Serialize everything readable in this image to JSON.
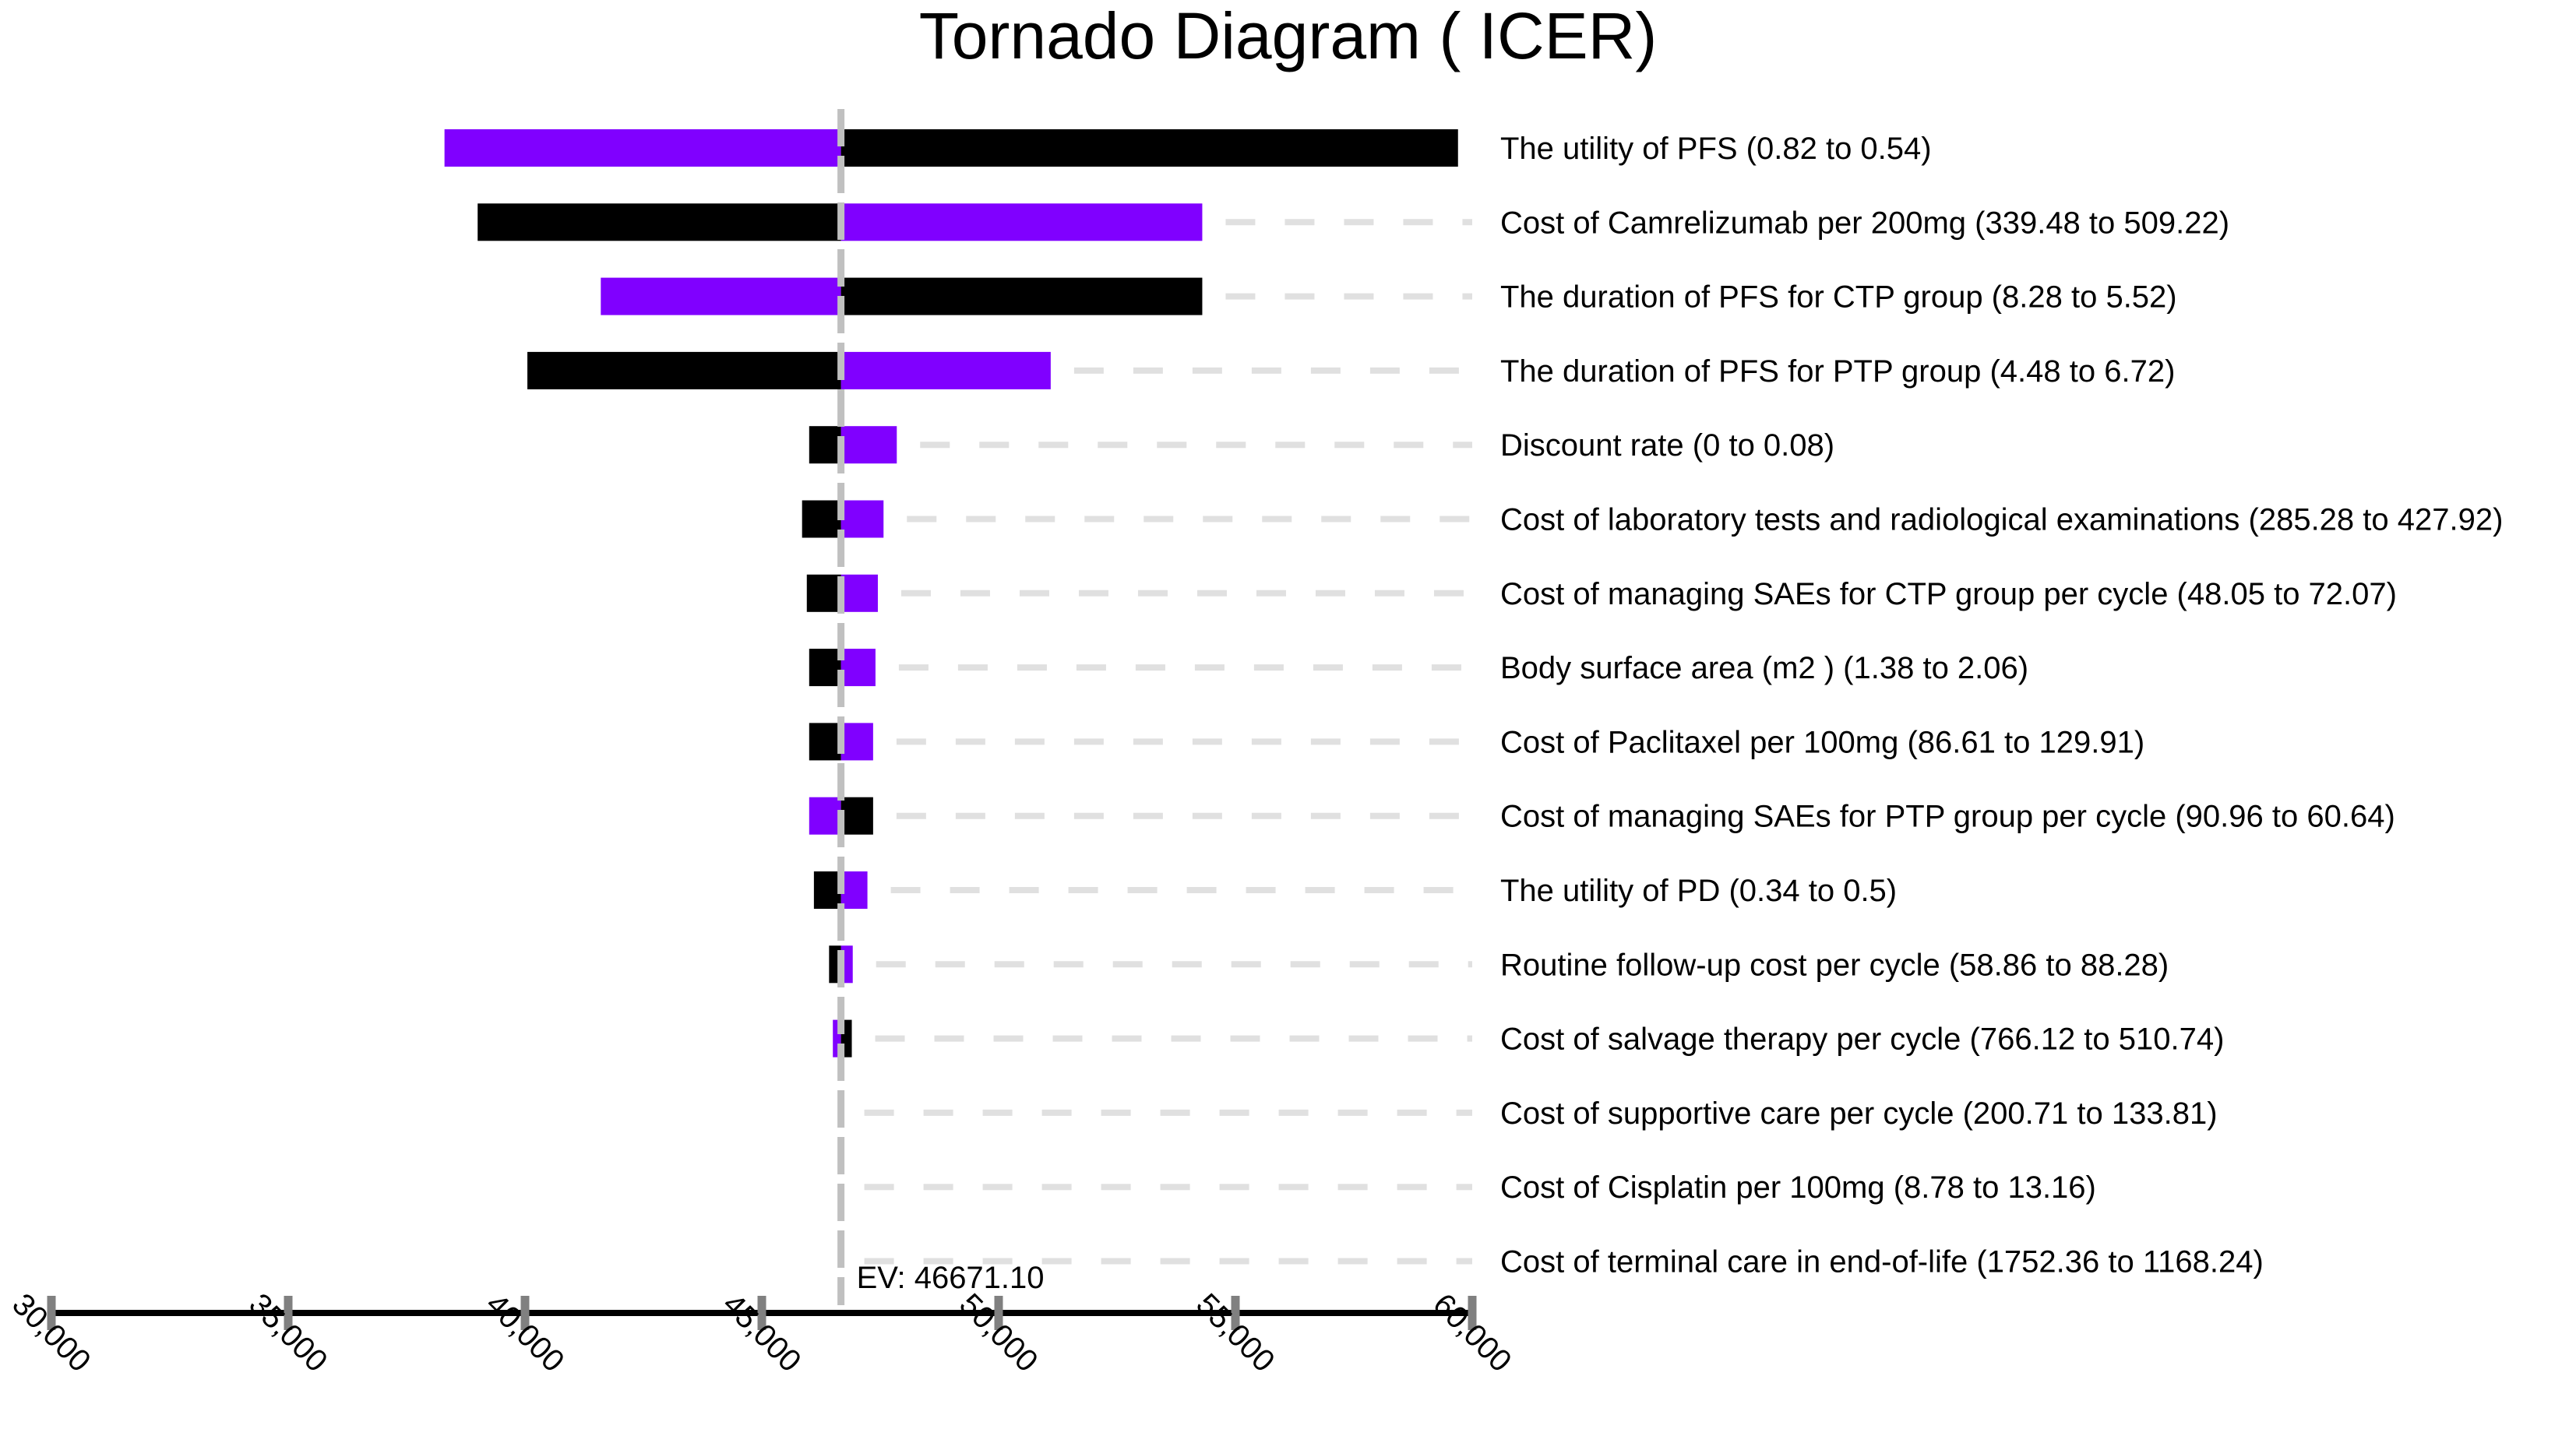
{
  "chart_data": {
    "type": "tornado",
    "title": "Tornado Diagram ( ICER)",
    "ev_label": "EV: 46671.10",
    "ev_value": 46671.1,
    "xlim": [
      30000,
      60000
    ],
    "x_ticks": [
      30000,
      35000,
      40000,
      45000,
      50000,
      55000,
      60000
    ],
    "x_tick_labels": [
      "30,000",
      "35,000",
      "40,000",
      "45,000",
      "50,000",
      "55,000",
      "60,000"
    ],
    "grid": false,
    "colors": {
      "low_input": "#8000ff",
      "high_input": "#000000",
      "ev_line": "#c0c0c0",
      "guide": "#e0e0e0",
      "axis": "#000000",
      "tick": "#808080"
    },
    "rows": [
      {
        "label": "The utility of PFS (0.82 to 0.54)",
        "low_value_icer": 38300,
        "high_value_icer": 59700
      },
      {
        "label": "Cost of Camrelizumab per 200mg (339.48 to 509.22)",
        "low_value_icer": 54300,
        "high_value_icer": 39000
      },
      {
        "label": "The duration of PFS for CTP group (8.28 to 5.52)",
        "low_value_icer": 41600,
        "high_value_icer": 54300
      },
      {
        "label": "The duration of PFS for PTP group (4.48 to 6.72)",
        "low_value_icer": 51100,
        "high_value_icer": 40050
      },
      {
        "label": "Discount rate (0 to 0.08)",
        "low_value_icer": 47850,
        "high_value_icer": 46000
      },
      {
        "label": "Cost of laboratory tests and radiological examinations (285.28 to 427.92)",
        "low_value_icer": 47570,
        "high_value_icer": 45850
      },
      {
        "label": "Cost of managing SAEs for CTP group per cycle (48.05 to 72.07)",
        "low_value_icer": 47450,
        "high_value_icer": 45950
      },
      {
        "label": "Body surface area (m2 ) (1.38 to 2.06)",
        "low_value_icer": 47400,
        "high_value_icer": 46000
      },
      {
        "label": "Cost of Paclitaxel per 100mg (86.61 to 129.91)",
        "low_value_icer": 47350,
        "high_value_icer": 46000
      },
      {
        "label": "Cost of managing SAEs for PTP group per cycle (90.96 to 60.64)",
        "low_value_icer": 46000,
        "high_value_icer": 47350
      },
      {
        "label": "The utility of PD (0.34 to 0.5)",
        "low_value_icer": 47230,
        "high_value_icer": 46100
      },
      {
        "label": "Routine follow-up cost per cycle (58.86 to 88.28)",
        "low_value_icer": 46920,
        "high_value_icer": 46420
      },
      {
        "label": "Cost of salvage therapy per cycle (766.12 to 510.74)",
        "low_value_icer": 46500,
        "high_value_icer": 46900
      },
      {
        "label": "Cost of supportive care per cycle (200.71 to 133.81)",
        "low_value_icer": 46671.1,
        "high_value_icer": 46671.1
      },
      {
        "label": "Cost of Cisplatin per 100mg (8.78 to 13.16)",
        "low_value_icer": 46671.1,
        "high_value_icer": 46671.1
      },
      {
        "label": "Cost of terminal care in end-of-life (1752.36 to 1168.24)",
        "low_value_icer": 46671.1,
        "high_value_icer": 46671.1
      }
    ]
  }
}
